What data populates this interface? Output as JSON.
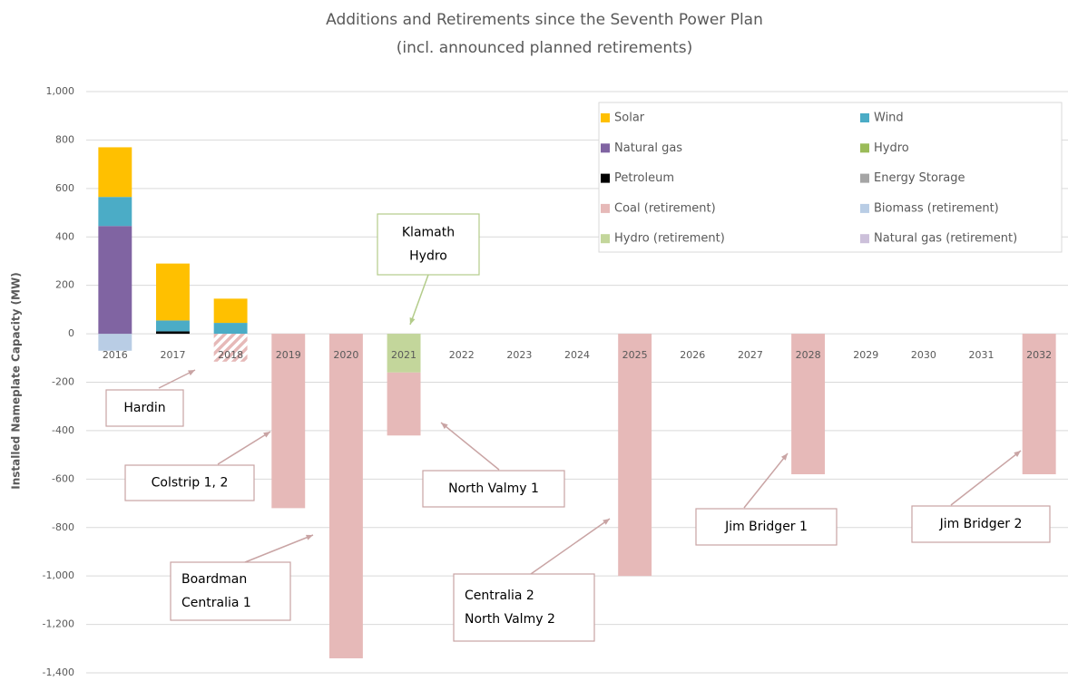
{
  "chart_data": {
    "type": "stacked_bar",
    "title": "Additions and Retirements since the Seventh Power Plan",
    "subtitle": "(incl. announced planned retirements)",
    "y_label": "Installed Nameplate Capacity (MW)",
    "categories": [
      "2016",
      "2017",
      "2018",
      "2019",
      "2020",
      "2021",
      "2022",
      "2023",
      "2024",
      "2025",
      "2026",
      "2027",
      "2028",
      "2029",
      "2030",
      "2031",
      "2032"
    ],
    "series": [
      {
        "name": "Solar",
        "color": "#ffc000",
        "values": [
          205,
          235,
          100,
          0,
          0,
          0,
          0,
          0,
          0,
          0,
          0,
          0,
          0,
          0,
          0,
          0,
          0
        ]
      },
      {
        "name": "Wind",
        "color": "#4bacc6",
        "values": [
          120,
          45,
          45,
          0,
          0,
          0,
          0,
          0,
          0,
          0,
          0,
          0,
          0,
          0,
          0,
          0,
          0
        ]
      },
      {
        "name": "Natural gas",
        "color": "#8064a2",
        "values": [
          445,
          0,
          0,
          0,
          0,
          0,
          0,
          0,
          0,
          0,
          0,
          0,
          0,
          0,
          0,
          0,
          0
        ]
      },
      {
        "name": "Hydro",
        "color": "#9bbb59",
        "values": [
          0,
          0,
          0,
          0,
          0,
          0,
          0,
          0,
          0,
          0,
          0,
          0,
          0,
          0,
          0,
          0,
          0
        ]
      },
      {
        "name": "Petroleum",
        "color": "#000000",
        "values": [
          0,
          10,
          0,
          0,
          0,
          0,
          0,
          0,
          0,
          0,
          0,
          0,
          0,
          0,
          0,
          0,
          0
        ]
      },
      {
        "name": "Energy Storage",
        "color": "#a5a5a5",
        "values": [
          0,
          0,
          0,
          0,
          0,
          0,
          0,
          0,
          0,
          0,
          0,
          0,
          0,
          0,
          0,
          0,
          0
        ]
      },
      {
        "name": "Coal (retirement)",
        "color": "#e6b9b8",
        "values": [
          0,
          0,
          -115,
          -720,
          -1340,
          -260,
          0,
          0,
          0,
          -1000,
          0,
          0,
          -580,
          0,
          0,
          0,
          -580
        ]
      },
      {
        "name": "Biomass (retirement)",
        "color": "#b9cde5",
        "values": [
          -70,
          0,
          0,
          0,
          0,
          0,
          0,
          0,
          0,
          0,
          0,
          0,
          0,
          0,
          0,
          0,
          0
        ]
      },
      {
        "name": "Hydro (retirement)",
        "color": "#c3d69b",
        "values": [
          0,
          0,
          0,
          0,
          0,
          -160,
          0,
          0,
          0,
          0,
          0,
          0,
          0,
          0,
          0,
          0,
          0
        ]
      },
      {
        "name": "Natural gas (retirement)",
        "color": "#ccc0da",
        "values": [
          0,
          0,
          0,
          0,
          0,
          0,
          0,
          0,
          0,
          0,
          0,
          0,
          0,
          0,
          0,
          0,
          0
        ]
      }
    ],
    "hatched_categories": [
      "2018"
    ],
    "ylim": [
      -1400,
      1000
    ],
    "yticks": [
      {
        "value": 1000,
        "label": "1,000"
      },
      800,
      600,
      400,
      200,
      0,
      -200,
      -400,
      -600,
      -800,
      {
        "value": -1000,
        "label": "-1,000"
      },
      {
        "value": -1200,
        "label": "-1,200"
      },
      {
        "value": -1400,
        "label": "-1,400"
      }
    ],
    "grid": true,
    "legend": "upper right",
    "annotations": [
      {
        "lines": [
          "Hardin"
        ]
      },
      {
        "lines": [
          "Colstrip 1, 2"
        ]
      },
      {
        "lines": [
          "Boardman",
          "Centralia 1"
        ]
      },
      {
        "lines": [
          "Klamath",
          "Hydro"
        ]
      },
      {
        "lines": [
          "North Valmy 1"
        ]
      },
      {
        "lines": [
          "Centralia 2",
          "North Valmy 2"
        ]
      },
      {
        "lines": [
          "Jim Bridger 1"
        ]
      },
      {
        "lines": [
          "Jim Bridger 2"
        ]
      }
    ]
  }
}
